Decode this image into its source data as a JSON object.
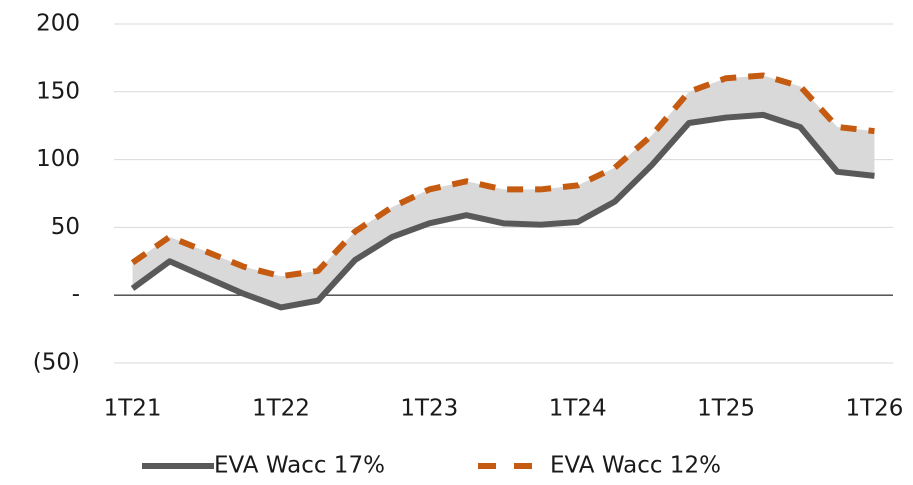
{
  "chart_data": {
    "type": "line",
    "categories": [
      "1T21",
      null,
      null,
      null,
      "1T22",
      null,
      null,
      null,
      "1T23",
      null,
      null,
      null,
      "1T24",
      null,
      null,
      null,
      "1T25",
      null,
      null,
      null,
      "1T26"
    ],
    "series": [
      {
        "name": "EVA Wacc 17%",
        "color": "#595959",
        "values": [
          5,
          25,
          13,
          1,
          -9,
          -4,
          26,
          43,
          53,
          59,
          53,
          52,
          54,
          69,
          96,
          127,
          131,
          133,
          124,
          91,
          88
        ]
      },
      {
        "name": "EVA Wacc 12%",
        "color": "#c55a11",
        "values": [
          24,
          43,
          32,
          21,
          14,
          18,
          47,
          65,
          78,
          84,
          78,
          78,
          81,
          94,
          118,
          150,
          160,
          162,
          154,
          124,
          121
        ]
      }
    ],
    "band_color": "#d9d9d9",
    "ylim": [
      -50,
      200
    ],
    "yticks": [
      {
        "value": -50,
        "label": "(50)"
      },
      {
        "value": 0,
        "label": "-"
      },
      50,
      100,
      150,
      200
    ],
    "grid": true,
    "legend": "bottom"
  }
}
